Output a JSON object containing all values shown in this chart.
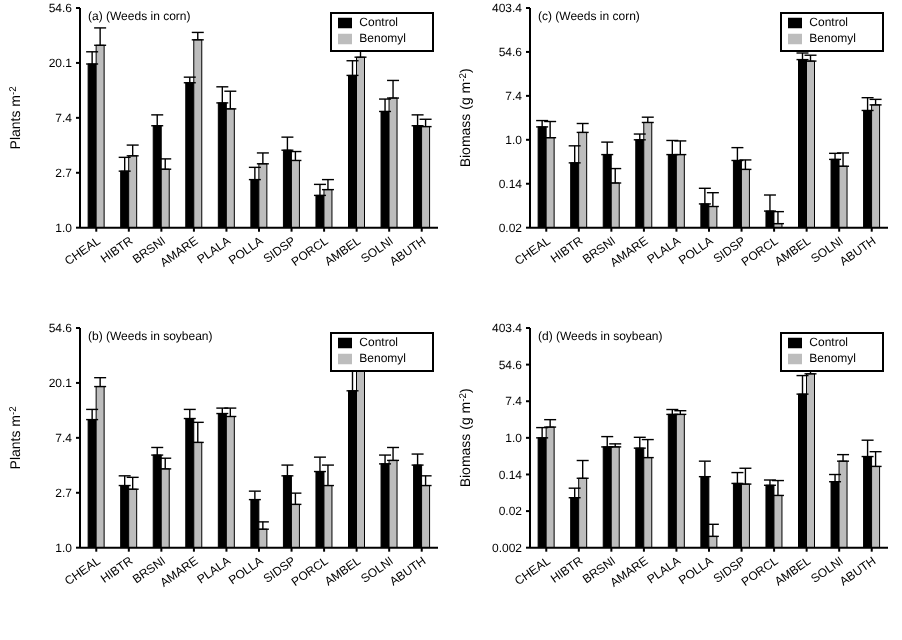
{
  "chart_data": [
    {
      "type": "bar",
      "title": "(a) (Weeds in corn)",
      "ylabel": "Plants m$^{-2}$",
      "categories": [
        "CHEAL",
        "HIBTR",
        "BRSNI",
        "AMARE",
        "PLALA",
        "POLLA",
        "SIDSP",
        "PORCL",
        "AMBEL",
        "SOLNI",
        "ABUTH"
      ],
      "log": "y",
      "legend": "top right",
      "ylim": [
        1,
        54.6
      ],
      "yticks": [
        {
          "value": 1,
          "label": "1.0"
        },
        {
          "value": 2.718,
          "label": "2.7"
        },
        {
          "value": 7.389,
          "label": "7.4"
        },
        {
          "value": 20.09,
          "label": "20.1"
        },
        {
          "value": 54.6,
          "label": "54.6"
        }
      ],
      "series": [
        {
          "name": "Control",
          "color": "#000000",
          "values": [
            19.7,
            2.8,
            6.4,
            14,
            9.7,
            2.4,
            4.1,
            1.8,
            16,
            8.3,
            6.4
          ],
          "errors": [
            [
              19.7,
              24.6
            ],
            [
              2.8,
              3.6
            ],
            [
              6.4,
              7.8
            ],
            [
              14,
              15.5
            ],
            [
              9.7,
              13
            ],
            [
              2.4,
              3.0
            ],
            [
              4.1,
              5.2
            ],
            [
              1.8,
              2.2
            ],
            [
              16,
              20.9
            ],
            [
              8.3,
              10.4
            ],
            [
              6.4,
              7.8
            ]
          ]
        },
        {
          "name": "Benomyl",
          "color": "#bdbdbd",
          "values": [
            27.7,
            3.7,
            2.9,
            30.6,
            8.7,
            3.2,
            3.4,
            2.0,
            22.3,
            10.6,
            6.3
          ],
          "errors": [
            [
              27.7,
              38
            ],
            [
              3.7,
              4.5
            ],
            [
              2.9,
              3.5
            ],
            [
              30.6,
              35
            ],
            [
              8.7,
              12
            ],
            [
              3.2,
              3.9
            ],
            [
              3.4,
              4.0
            ],
            [
              2.0,
              2.4
            ],
            [
              22.3,
              27.4
            ],
            [
              10.6,
              14.6
            ],
            [
              6.3,
              7.2
            ]
          ]
        }
      ]
    },
    {
      "type": "bar",
      "title": "(c) (Weeds in corn)",
      "ylabel": "Biomass (g m$^{-2}$)",
      "categories": [
        "CHEAL",
        "HIBTR",
        "BRSNI",
        "AMARE",
        "PLALA",
        "POLLA",
        "SIDSP",
        "PORCL",
        "AMBEL",
        "SOLNI",
        "ABUTH"
      ],
      "log": "y",
      "legend": "top right",
      "ylim": [
        0.0183,
        403.4
      ],
      "yticks": [
        {
          "value": 0.0183,
          "label": "0.02"
        },
        {
          "value": 0.1353,
          "label": "0.14"
        },
        {
          "value": 1,
          "label": "1.0"
        },
        {
          "value": 7.389,
          "label": "7.4"
        },
        {
          "value": 54.6,
          "label": "54.6"
        },
        {
          "value": 403.4,
          "label": "403.4"
        }
      ],
      "series": [
        {
          "name": "Control",
          "color": "#000000",
          "values": [
            1.8,
            0.35,
            0.51,
            1.0,
            0.51,
            0.054,
            0.39,
            0.039,
            38.5,
            0.41,
            3.8
          ],
          "errors": [
            [
              1.8,
              2.4
            ],
            [
              0.35,
              0.76
            ],
            [
              0.51,
              0.9
            ],
            [
              1.0,
              1.3
            ],
            [
              0.51,
              0.97
            ],
            [
              0.054,
              0.11
            ],
            [
              0.39,
              0.7
            ],
            [
              0.039,
              0.081
            ],
            [
              38.5,
              52
            ],
            [
              0.41,
              0.54
            ],
            [
              3.8,
              6.8
            ]
          ]
        },
        {
          "name": "Benomyl",
          "color": "#bdbdbd",
          "values": [
            1.1,
            1.4,
            0.14,
            2.2,
            0.51,
            0.048,
            0.26,
            0.022,
            36,
            0.3,
            4.9
          ],
          "errors": [
            [
              1.1,
              2.3
            ],
            [
              1.4,
              2.1
            ],
            [
              0.14,
              0.27
            ],
            [
              2.2,
              2.8
            ],
            [
              0.51,
              0.95
            ],
            [
              0.048,
              0.09
            ],
            [
              0.26,
              0.4
            ],
            [
              0.022,
              0.038
            ],
            [
              36,
              47
            ],
            [
              0.3,
              0.55
            ],
            [
              4.9,
              6.3
            ]
          ]
        }
      ]
    },
    {
      "type": "bar",
      "title": "(b) (Weeds in soybean)",
      "ylabel": "Plants m$^{-2}$",
      "categories": [
        "CHEAL",
        "HIBTR",
        "BRSNI",
        "AMARE",
        "PLALA",
        "POLLA",
        "SIDSP",
        "PORCL",
        "AMBEL",
        "SOLNI",
        "ABUTH"
      ],
      "log": "y",
      "legend": "top right",
      "ylim": [
        1,
        54.6
      ],
      "yticks": [
        {
          "value": 1,
          "label": "1.0"
        },
        {
          "value": 2.718,
          "label": "2.7"
        },
        {
          "value": 7.389,
          "label": "7.4"
        },
        {
          "value": 20.09,
          "label": "20.1"
        },
        {
          "value": 54.6,
          "label": "54.6"
        }
      ],
      "series": [
        {
          "name": "Control",
          "color": "#000000",
          "values": [
            10.3,
            3.1,
            5.4,
            10.5,
            11.5,
            2.4,
            3.7,
            4.0,
            17.4,
            4.6,
            4.5
          ],
          "errors": [
            [
              10.3,
              12.4
            ],
            [
              3.1,
              3.7
            ],
            [
              5.4,
              6.2
            ],
            [
              10.5,
              12.4
            ],
            [
              11.5,
              12.7
            ],
            [
              2.4,
              2.8
            ],
            [
              3.7,
              4.5
            ],
            [
              4.0,
              5.2
            ],
            [
              17.4,
              26.9
            ],
            [
              4.6,
              5.4
            ],
            [
              4.5,
              5.5
            ]
          ]
        },
        {
          "name": "Benomyl",
          "color": "#bdbdbd",
          "values": [
            18.8,
            2.9,
            4.2,
            6.8,
            10.9,
            1.4,
            2.2,
            3.1,
            25.8,
            4.9,
            3.1
          ],
          "errors": [
            [
              18.8,
              22.1
            ],
            [
              2.9,
              3.6
            ],
            [
              4.2,
              5.1
            ],
            [
              6.8,
              9.8
            ],
            [
              10.9,
              12.7
            ],
            [
              1.4,
              1.6
            ],
            [
              2.2,
              2.7
            ],
            [
              3.1,
              4.5
            ],
            [
              25.8,
              32
            ],
            [
              4.9,
              6.2
            ],
            [
              3.1,
              3.7
            ]
          ]
        }
      ]
    },
    {
      "type": "bar",
      "title": "(d) (Weeds in soybean)",
      "ylabel": "Biomass (g m$^{-2}$)",
      "categories": [
        "CHEAL",
        "HIBTR",
        "BRSNI",
        "AMARE",
        "PLALA",
        "POLLA",
        "SIDSP",
        "PORCL",
        "AMBEL",
        "SOLNI",
        "ABUTH"
      ],
      "log": "y",
      "legend": "top right",
      "ylim": [
        0.00248,
        403.4
      ],
      "yticks": [
        {
          "value": 0.00248,
          "label": "0.002"
        },
        {
          "value": 0.0183,
          "label": "0.02"
        },
        {
          "value": 0.1353,
          "label": "0.14"
        },
        {
          "value": 1,
          "label": "1.0"
        },
        {
          "value": 7.389,
          "label": "7.4"
        },
        {
          "value": 54.6,
          "label": "54.6"
        },
        {
          "value": 403.4,
          "label": "403.4"
        }
      ],
      "series": [
        {
          "name": "Control",
          "color": "#000000",
          "values": [
            1.0,
            0.038,
            0.61,
            0.57,
            3.6,
            0.12,
            0.083,
            0.075,
            10.9,
            0.091,
            0.36
          ],
          "errors": [
            [
              1.0,
              1.75
            ],
            [
              0.038,
              0.064
            ],
            [
              0.61,
              1.07
            ],
            [
              0.57,
              1.03
            ],
            [
              3.6,
              4.7
            ],
            [
              0.12,
              0.28
            ],
            [
              0.083,
              0.15
            ],
            [
              0.075,
              0.1
            ],
            [
              10.9,
              30
            ],
            [
              0.091,
              0.135
            ],
            [
              0.36,
              0.88
            ]
          ]
        },
        {
          "name": "Benomyl",
          "color": "#bdbdbd",
          "values": [
            1.8,
            0.11,
            0.61,
            0.34,
            3.6,
            0.0046,
            0.08,
            0.043,
            33,
            0.28,
            0.21
          ],
          "errors": [
            [
              1.8,
              2.7
            ],
            [
              0.11,
              0.29
            ],
            [
              0.61,
              0.72
            ],
            [
              0.34,
              0.91
            ],
            [
              3.6,
              4.4
            ],
            [
              0.0046,
              0.0089
            ],
            [
              0.08,
              0.19
            ],
            [
              0.043,
              0.097
            ],
            [
              33,
              39
            ],
            [
              0.28,
              0.4
            ],
            [
              0.21,
              0.47
            ]
          ]
        }
      ]
    }
  ]
}
